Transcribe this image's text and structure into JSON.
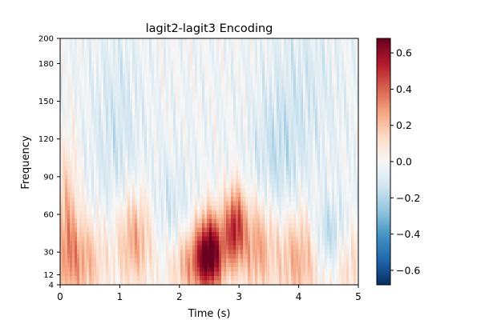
{
  "chart_data": {
    "type": "heatmap",
    "title": "lagit2-lagit3 Encoding",
    "xlabel": "Time (s)",
    "ylabel": "Frequency",
    "xlim": [
      0,
      5
    ],
    "ylim": [
      4,
      200
    ],
    "x_ticks": [
      "0",
      "1",
      "2",
      "3",
      "4",
      "5"
    ],
    "y_ticks": [
      "4",
      "12",
      "30",
      "60",
      "90",
      "120",
      "150",
      "180",
      "200"
    ],
    "colorbar": {
      "colormap": "RdBu_r",
      "vmin": -0.68,
      "vmax": 0.68,
      "ticks": [
        "−0.6",
        "−0.4",
        "−0.2",
        "0.0",
        "0.2",
        "0.4",
        "0.6"
      ],
      "colors": [
        "#053061",
        "#2166ac",
        "#4393c3",
        "#92c5de",
        "#d1e5f0",
        "#f7f7f7",
        "#fddbc7",
        "#f4a582",
        "#d6604d",
        "#b2182b",
        "#67001f"
      ]
    },
    "grid": false,
    "blobs": [
      {
        "t": 2.52,
        "f": 30,
        "amp": 0.66,
        "st": 0.17,
        "sf": 22
      },
      {
        "t": 2.93,
        "f": 50,
        "amp": 0.5,
        "st": 0.12,
        "sf": 22
      },
      {
        "t": 3.3,
        "f": 35,
        "amp": 0.3,
        "st": 0.2,
        "sf": 28
      },
      {
        "t": 2.2,
        "f": 20,
        "amp": 0.28,
        "st": 0.28,
        "sf": 20
      },
      {
        "t": 1.25,
        "f": 40,
        "amp": 0.3,
        "st": 0.22,
        "sf": 28
      },
      {
        "t": 0.35,
        "f": 22,
        "amp": 0.28,
        "st": 0.3,
        "sf": 26
      },
      {
        "t": 0.12,
        "f": 60,
        "amp": 0.22,
        "st": 0.12,
        "sf": 40
      },
      {
        "t": 4.0,
        "f": 25,
        "amp": 0.28,
        "st": 0.28,
        "sf": 28
      },
      {
        "t": 4.85,
        "f": 20,
        "amp": 0.16,
        "st": 0.2,
        "sf": 22
      },
      {
        "t": 4.5,
        "f": 42,
        "amp": -0.2,
        "st": 0.2,
        "sf": 20
      },
      {
        "t": 3.6,
        "f": 100,
        "amp": -0.12,
        "st": 0.3,
        "sf": 40
      },
      {
        "t": 0.95,
        "f": 120,
        "amp": -0.1,
        "st": 0.3,
        "sf": 60
      },
      {
        "t": 1.85,
        "f": 60,
        "amp": -0.1,
        "st": 0.25,
        "sf": 30
      },
      {
        "t": 4.1,
        "f": 160,
        "amp": -0.08,
        "st": 0.4,
        "sf": 50
      }
    ]
  }
}
